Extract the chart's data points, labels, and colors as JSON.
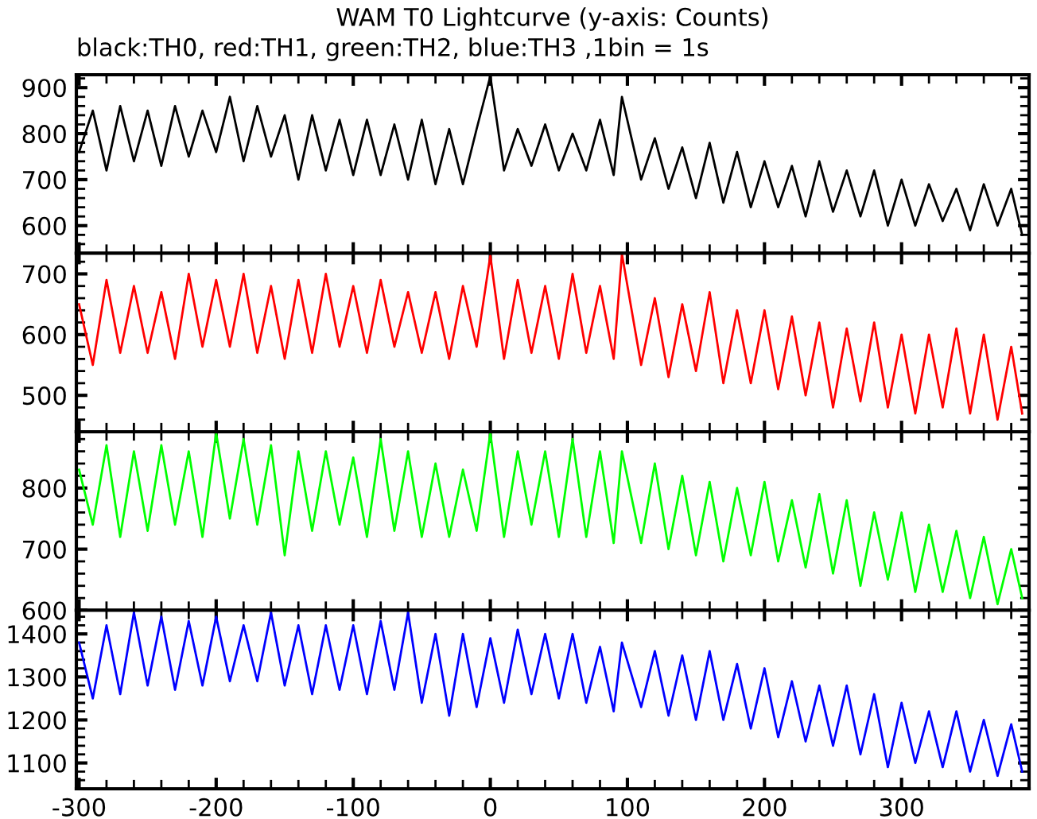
{
  "chart_data": [
    {
      "type": "line",
      "title": "WAM T0 Lightcurve (y-axis: Counts)",
      "subtitle": "black:TH0, red:TH1, green:TH2, blue:TH3 ,1bin = 1s",
      "tick_labels": "y",
      "xlim": [
        -302,
        393
      ],
      "xticks": [
        -300,
        -200,
        -100,
        0,
        100,
        200,
        300
      ],
      "ylim": [
        540,
        928
      ],
      "yticks": [
        600,
        700,
        800,
        900
      ],
      "legend": false,
      "x": [
        -300,
        -290,
        -280,
        -270,
        -260,
        -250,
        -240,
        -230,
        -220,
        -210,
        -200,
        -190,
        -180,
        -170,
        -160,
        -150,
        -140,
        -130,
        -120,
        -110,
        -100,
        -90,
        -80,
        -70,
        -60,
        -50,
        -40,
        -30,
        -20,
        -10,
        0,
        10,
        20,
        30,
        40,
        50,
        60,
        70,
        80,
        90,
        96,
        110,
        120,
        130,
        140,
        150,
        160,
        170,
        180,
        190,
        200,
        210,
        220,
        230,
        240,
        250,
        260,
        270,
        280,
        290,
        300,
        310,
        320,
        330,
        340,
        350,
        360,
        370,
        380,
        388
      ],
      "series": [
        {
          "color": "#000000",
          "values": [
            760,
            850,
            720,
            860,
            740,
            850,
            730,
            860,
            750,
            850,
            760,
            880,
            740,
            860,
            750,
            840,
            700,
            840,
            720,
            830,
            710,
            830,
            710,
            820,
            700,
            830,
            690,
            810,
            690,
            810,
            925,
            720,
            810,
            730,
            820,
            720,
            800,
            720,
            830,
            710,
            880,
            700,
            790,
            680,
            770,
            660,
            780,
            650,
            760,
            640,
            740,
            640,
            730,
            620,
            740,
            630,
            720,
            620,
            720,
            600,
            700,
            600,
            690,
            610,
            680,
            590,
            690,
            600,
            680,
            580
          ]
        }
      ]
    },
    {
      "type": "line",
      "tick_labels": "y",
      "xlim": [
        -302,
        393
      ],
      "xticks": [
        -300,
        -200,
        -100,
        0,
        100,
        200,
        300
      ],
      "ylim": [
        440,
        734
      ],
      "yticks": [
        500,
        600,
        700
      ],
      "legend": false,
      "x": [
        -300,
        -290,
        -280,
        -270,
        -260,
        -250,
        -240,
        -230,
        -220,
        -210,
        -200,
        -190,
        -180,
        -170,
        -160,
        -150,
        -140,
        -130,
        -120,
        -110,
        -100,
        -90,
        -80,
        -70,
        -60,
        -50,
        -40,
        -30,
        -20,
        -10,
        0,
        10,
        20,
        30,
        40,
        50,
        60,
        70,
        80,
        90,
        96,
        110,
        120,
        130,
        140,
        150,
        160,
        170,
        180,
        190,
        200,
        210,
        220,
        230,
        240,
        250,
        260,
        270,
        280,
        290,
        300,
        310,
        320,
        330,
        340,
        350,
        360,
        370,
        380,
        388
      ],
      "series": [
        {
          "color": "#ff0000",
          "values": [
            650,
            550,
            690,
            570,
            680,
            570,
            670,
            560,
            700,
            580,
            690,
            580,
            700,
            570,
            680,
            560,
            690,
            570,
            700,
            580,
            680,
            570,
            690,
            580,
            670,
            570,
            670,
            560,
            680,
            580,
            730,
            560,
            690,
            570,
            680,
            560,
            700,
            570,
            680,
            560,
            733,
            550,
            660,
            530,
            650,
            540,
            670,
            520,
            640,
            520,
            640,
            510,
            630,
            500,
            620,
            480,
            610,
            490,
            620,
            480,
            600,
            470,
            600,
            480,
            610,
            470,
            600,
            460,
            580,
            470
          ]
        }
      ]
    },
    {
      "type": "line",
      "tick_labels": "y",
      "xlim": [
        -302,
        393
      ],
      "xticks": [
        -300,
        -200,
        -100,
        0,
        100,
        200,
        300
      ],
      "ylim": [
        600,
        892
      ],
      "yticks": [
        600,
        700,
        800
      ],
      "legend": false,
      "x": [
        -300,
        -290,
        -280,
        -270,
        -260,
        -250,
        -240,
        -230,
        -220,
        -210,
        -200,
        -190,
        -180,
        -170,
        -160,
        -150,
        -140,
        -130,
        -120,
        -110,
        -100,
        -90,
        -80,
        -70,
        -60,
        -50,
        -40,
        -30,
        -20,
        -10,
        0,
        10,
        20,
        30,
        40,
        50,
        60,
        70,
        80,
        90,
        96,
        110,
        120,
        130,
        140,
        150,
        160,
        170,
        180,
        190,
        200,
        210,
        220,
        230,
        240,
        250,
        260,
        270,
        280,
        290,
        300,
        310,
        320,
        330,
        340,
        350,
        360,
        370,
        380,
        388
      ],
      "series": [
        {
          "color": "#00ff00",
          "values": [
            830,
            740,
            870,
            720,
            860,
            730,
            870,
            740,
            860,
            720,
            890,
            750,
            880,
            740,
            870,
            690,
            860,
            730,
            860,
            740,
            850,
            720,
            880,
            730,
            860,
            720,
            840,
            720,
            830,
            730,
            890,
            720,
            860,
            740,
            860,
            720,
            880,
            720,
            860,
            710,
            860,
            710,
            840,
            700,
            820,
            690,
            810,
            680,
            800,
            690,
            810,
            680,
            780,
            670,
            790,
            660,
            780,
            640,
            760,
            650,
            760,
            630,
            740,
            630,
            730,
            620,
            720,
            610,
            700,
            620
          ]
        }
      ]
    },
    {
      "type": "line",
      "xlim": [
        -302,
        393
      ],
      "xticks": [
        -300,
        -200,
        -100,
        0,
        100,
        200,
        300
      ],
      "ylim": [
        1040,
        1455
      ],
      "yticks": [
        1100,
        1200,
        1300,
        1400
      ],
      "legend": false,
      "x": [
        -300,
        -290,
        -280,
        -270,
        -260,
        -250,
        -240,
        -230,
        -220,
        -210,
        -200,
        -190,
        -180,
        -170,
        -160,
        -150,
        -140,
        -130,
        -120,
        -110,
        -100,
        -90,
        -80,
        -70,
        -60,
        -50,
        -40,
        -30,
        -20,
        -10,
        0,
        10,
        20,
        30,
        40,
        50,
        60,
        70,
        80,
        90,
        96,
        110,
        120,
        130,
        140,
        150,
        160,
        170,
        180,
        190,
        200,
        210,
        220,
        230,
        240,
        250,
        260,
        270,
        280,
        290,
        300,
        310,
        320,
        330,
        340,
        350,
        360,
        370,
        380,
        388
      ],
      "series": [
        {
          "color": "#0000ff",
          "values": [
            1380,
            1250,
            1420,
            1260,
            1450,
            1280,
            1440,
            1270,
            1430,
            1280,
            1440,
            1290,
            1420,
            1290,
            1450,
            1280,
            1420,
            1260,
            1420,
            1270,
            1420,
            1260,
            1430,
            1270,
            1450,
            1240,
            1400,
            1210,
            1400,
            1230,
            1390,
            1240,
            1410,
            1260,
            1400,
            1250,
            1400,
            1240,
            1370,
            1220,
            1380,
            1230,
            1360,
            1210,
            1350,
            1200,
            1360,
            1200,
            1330,
            1180,
            1320,
            1160,
            1290,
            1150,
            1280,
            1140,
            1280,
            1120,
            1260,
            1090,
            1240,
            1100,
            1220,
            1090,
            1220,
            1080,
            1200,
            1070,
            1190,
            1080
          ]
        }
      ]
    }
  ]
}
